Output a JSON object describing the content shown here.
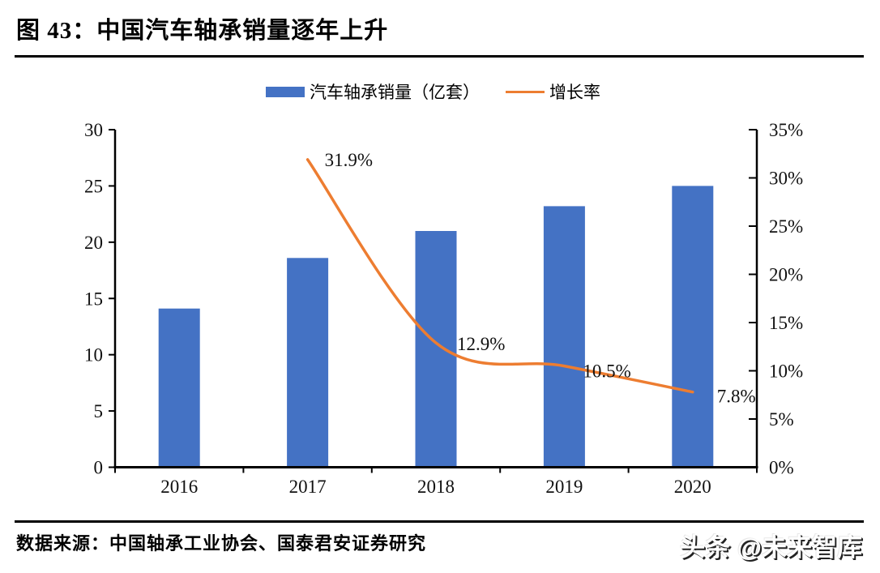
{
  "figure": {
    "title": "图 43：中国汽车轴承销量逐年上升",
    "source": "数据来源：中国轴承工业协会、国泰君安证券研究",
    "watermark": "头条 @未来智库"
  },
  "legend": {
    "bars_label": "汽车轴承销量（亿套）",
    "line_label": "增长率"
  },
  "colors": {
    "bar": "#4472C4",
    "line": "#ED7D31",
    "axis": "#000000"
  },
  "chart_data": {
    "type": "bar",
    "subtype": "bar+line combo, dual axis",
    "categories": [
      "2016",
      "2017",
      "2018",
      "2019",
      "2020"
    ],
    "series": [
      {
        "name": "汽车轴承销量（亿套）",
        "type": "bar",
        "axis": "left",
        "values": [
          14.1,
          18.6,
          21.0,
          23.2,
          25.0
        ]
      },
      {
        "name": "增长率",
        "type": "line",
        "axis": "right",
        "values": [
          null,
          31.9,
          12.9,
          10.5,
          7.8
        ],
        "labels": [
          "",
          "31.9%",
          "12.9%",
          "10.5%",
          "7.8%"
        ]
      }
    ],
    "left_axis": {
      "ticks": [
        0,
        5,
        10,
        15,
        20,
        25,
        30
      ],
      "max": 30
    },
    "right_axis": {
      "ticks": [
        "0%",
        "5%",
        "10%",
        "15%",
        "20%",
        "25%",
        "30%",
        "35%"
      ],
      "max": 35
    },
    "legend_position": "top",
    "grid": false
  }
}
